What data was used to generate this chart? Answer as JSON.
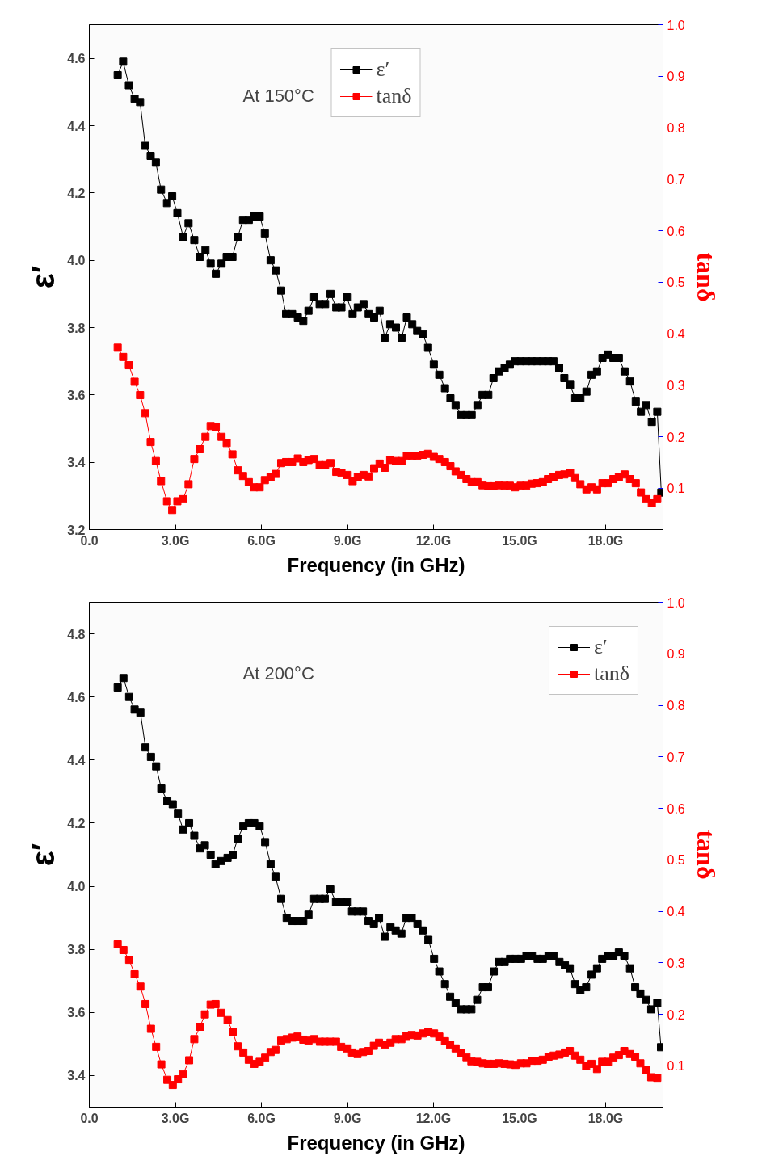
{
  "chart_data": [
    {
      "type": "line",
      "xlabel": "Frequency (in GHz)",
      "ylabel": "ε′",
      "y2label": "tanδ",
      "annotations": [
        "At 150°C"
      ],
      "marker": "square",
      "grid": false,
      "legend": "top",
      "xlim": [
        0,
        20
      ],
      "xticks": [
        {
          "value": 0,
          "label": "0.0"
        },
        {
          "value": 3,
          "label": "3.0G"
        },
        {
          "value": 6,
          "label": "6.0G"
        },
        {
          "value": 9,
          "label": "9.0G"
        },
        {
          "value": 12,
          "label": "12.0G"
        },
        {
          "value": 15,
          "label": "15.0G"
        },
        {
          "value": 18,
          "label": "18.0G"
        }
      ],
      "ylim": [
        3.2,
        4.7
      ],
      "yticks": [
        {
          "value": 3.2,
          "label": "3.2"
        },
        {
          "value": 3.4,
          "label": "3.4"
        },
        {
          "value": 3.6,
          "label": "3.6"
        },
        {
          "value": 3.8,
          "label": "3.8"
        },
        {
          "value": 4.0,
          "label": "4.0"
        },
        {
          "value": 4.2,
          "label": "4.2"
        },
        {
          "value": 4.4,
          "label": "4.4"
        },
        {
          "value": 4.6,
          "label": "4.6"
        }
      ],
      "y2lim": [
        0.02,
        1.0
      ],
      "y2ticks": [
        {
          "value": 0.1,
          "label": "0.1"
        },
        {
          "value": 0.2,
          "label": "0.2"
        },
        {
          "value": 0.3,
          "label": "0.3"
        },
        {
          "value": 0.4,
          "label": "0.4"
        },
        {
          "value": 0.5,
          "label": "0.5"
        },
        {
          "value": 0.6,
          "label": "0.6"
        },
        {
          "value": 0.7,
          "label": "0.7"
        },
        {
          "value": 0.8,
          "label": "0.8"
        },
        {
          "value": 0.9,
          "label": "0.9"
        },
        {
          "value": 1.0,
          "label": "1.0"
        }
      ],
      "x": [
        0.99,
        1.18,
        1.38,
        1.58,
        1.77,
        1.95,
        2.14,
        2.32,
        2.5,
        2.71,
        2.89,
        3.07,
        3.27,
        3.46,
        3.66,
        3.85,
        4.05,
        4.23,
        4.41,
        4.61,
        4.79,
        4.99,
        5.18,
        5.36,
        5.56,
        5.74,
        5.94,
        6.12,
        6.32,
        6.5,
        6.69,
        6.86,
        7.07,
        7.27,
        7.46,
        7.64,
        7.84,
        8.03,
        8.22,
        8.41,
        8.61,
        8.79,
        8.98,
        9.18,
        9.36,
        9.56,
        9.74,
        9.93,
        10.12,
        10.3,
        10.49,
        10.69,
        10.89,
        11.07,
        11.26,
        11.43,
        11.63,
        11.81,
        12.01,
        12.2,
        12.4,
        12.59,
        12.77,
        12.96,
        13.15,
        13.33,
        13.53,
        13.71,
        13.91,
        14.09,
        14.28,
        14.48,
        14.66,
        14.84,
        15.04,
        15.23,
        15.42,
        15.61,
        15.81,
        15.99,
        16.18,
        16.38,
        16.56,
        16.76,
        16.94,
        17.12,
        17.33,
        17.51,
        17.7,
        17.89,
        18.07,
        18.27,
        18.46,
        18.66,
        18.85,
        19.05,
        19.23,
        19.41,
        19.61,
        19.8,
        19.94
      ],
      "series": [
        {
          "name": "ε′",
          "color": "#000000",
          "values": [
            4.55,
            4.59,
            4.52,
            4.48,
            4.47,
            4.34,
            4.31,
            4.29,
            4.21,
            4.17,
            4.19,
            4.14,
            4.07,
            4.11,
            4.06,
            4.01,
            4.03,
            3.99,
            3.96,
            3.99,
            4.01,
            4.01,
            4.07,
            4.12,
            4.12,
            4.13,
            4.13,
            4.08,
            4.0,
            3.97,
            3.91,
            3.84,
            3.84,
            3.83,
            3.82,
            3.85,
            3.89,
            3.87,
            3.87,
            3.9,
            3.86,
            3.86,
            3.89,
            3.84,
            3.86,
            3.87,
            3.84,
            3.83,
            3.85,
            3.77,
            3.81,
            3.8,
            3.77,
            3.83,
            3.81,
            3.79,
            3.78,
            3.74,
            3.69,
            3.66,
            3.62,
            3.59,
            3.57,
            3.54,
            3.54,
            3.54,
            3.57,
            3.6,
            3.6,
            3.65,
            3.67,
            3.68,
            3.69,
            3.7,
            3.7,
            3.7,
            3.7,
            3.7,
            3.7,
            3.7,
            3.7,
            3.68,
            3.65,
            3.63,
            3.59,
            3.59,
            3.61,
            3.66,
            3.67,
            3.71,
            3.72,
            3.71,
            3.71,
            3.67,
            3.64,
            3.58,
            3.55,
            3.57,
            3.52,
            3.55,
            3.31
          ]
        },
        {
          "name": "tanδ",
          "color": "#ff0000",
          "axis": "y2",
          "values": [
            0.373,
            0.355,
            0.339,
            0.307,
            0.281,
            0.246,
            0.19,
            0.153,
            0.114,
            0.075,
            0.058,
            0.075,
            0.079,
            0.108,
            0.157,
            0.176,
            0.2,
            0.221,
            0.219,
            0.2,
            0.188,
            0.166,
            0.135,
            0.124,
            0.112,
            0.102,
            0.102,
            0.116,
            0.122,
            0.128,
            0.149,
            0.151,
            0.151,
            0.158,
            0.151,
            0.155,
            0.157,
            0.145,
            0.145,
            0.149,
            0.132,
            0.13,
            0.126,
            0.114,
            0.122,
            0.126,
            0.123,
            0.139,
            0.148,
            0.14,
            0.155,
            0.153,
            0.153,
            0.163,
            0.163,
            0.163,
            0.165,
            0.167,
            0.161,
            0.157,
            0.151,
            0.143,
            0.133,
            0.126,
            0.118,
            0.112,
            0.112,
            0.106,
            0.104,
            0.104,
            0.106,
            0.105,
            0.105,
            0.102,
            0.105,
            0.105,
            0.109,
            0.11,
            0.112,
            0.118,
            0.122,
            0.126,
            0.127,
            0.13,
            0.12,
            0.108,
            0.098,
            0.102,
            0.098,
            0.11,
            0.11,
            0.118,
            0.122,
            0.127,
            0.118,
            0.11,
            0.092,
            0.079,
            0.071,
            0.079,
            null
          ]
        }
      ]
    },
    {
      "type": "line",
      "xlabel": "Frequency (in GHz)",
      "ylabel": "ε′",
      "y2label": "tanδ",
      "annotations": [
        "At 200°C"
      ],
      "marker": "square",
      "grid": false,
      "legend": "top right",
      "xlim": [
        0,
        20
      ],
      "xticks": [
        {
          "value": 0,
          "label": "0.0"
        },
        {
          "value": 3,
          "label": "3.0G"
        },
        {
          "value": 6,
          "label": "6.0G"
        },
        {
          "value": 9,
          "label": "9.0G"
        },
        {
          "value": 12,
          "label": "12.0G"
        },
        {
          "value": 15,
          "label": "15.0G"
        },
        {
          "value": 18,
          "label": "18.0G"
        }
      ],
      "ylim": [
        3.3,
        4.9
      ],
      "yticks": [
        {
          "value": 3.4,
          "label": "3.4"
        },
        {
          "value": 3.6,
          "label": "3.6"
        },
        {
          "value": 3.8,
          "label": "3.8"
        },
        {
          "value": 4.0,
          "label": "4.0"
        },
        {
          "value": 4.2,
          "label": "4.2"
        },
        {
          "value": 4.4,
          "label": "4.4"
        },
        {
          "value": 4.6,
          "label": "4.6"
        },
        {
          "value": 4.8,
          "label": "4.8"
        }
      ],
      "y2lim": [
        0.02,
        1.0
      ],
      "y2ticks": [
        {
          "value": 0.1,
          "label": "0.1"
        },
        {
          "value": 0.2,
          "label": "0.2"
        },
        {
          "value": 0.3,
          "label": "0.3"
        },
        {
          "value": 0.4,
          "label": "0.4"
        },
        {
          "value": 0.5,
          "label": "0.5"
        },
        {
          "value": 0.6,
          "label": "0.6"
        },
        {
          "value": 0.7,
          "label": "0.7"
        },
        {
          "value": 0.8,
          "label": "0.8"
        },
        {
          "value": 0.9,
          "label": "0.9"
        },
        {
          "value": 1.0,
          "label": "1.0"
        }
      ],
      "x": [
        0.99,
        1.19,
        1.39,
        1.58,
        1.78,
        1.96,
        2.15,
        2.33,
        2.51,
        2.72,
        2.91,
        3.09,
        3.27,
        3.48,
        3.66,
        3.86,
        4.03,
        4.23,
        4.4,
        4.59,
        4.82,
        5.0,
        5.17,
        5.37,
        5.56,
        5.75,
        5.94,
        6.13,
        6.32,
        6.49,
        6.69,
        6.88,
        7.08,
        7.26,
        7.46,
        7.64,
        7.84,
        8.04,
        8.21,
        8.4,
        8.6,
        8.78,
        8.98,
        9.16,
        9.35,
        9.54,
        9.73,
        9.92,
        10.1,
        10.3,
        10.5,
        10.68,
        10.88,
        11.05,
        11.24,
        11.44,
        11.62,
        11.82,
        12.02,
        12.2,
        12.4,
        12.58,
        12.77,
        12.96,
        13.15,
        13.32,
        13.52,
        13.72,
        13.9,
        14.1,
        14.28,
        14.48,
        14.67,
        14.86,
        15.05,
        15.24,
        15.43,
        15.63,
        15.81,
        16.01,
        16.19,
        16.39,
        16.58,
        16.75,
        16.94,
        17.12,
        17.32,
        17.51,
        17.7,
        17.88,
        18.08,
        18.27,
        18.46,
        18.65,
        18.85,
        19.03,
        19.21,
        19.41,
        19.59,
        19.8,
        19.93
      ],
      "series": [
        {
          "name": "ε′",
          "color": "#000000",
          "values": [
            4.63,
            4.66,
            4.6,
            4.56,
            4.55,
            4.44,
            4.41,
            4.38,
            4.31,
            4.27,
            4.26,
            4.23,
            4.18,
            4.2,
            4.16,
            4.12,
            4.13,
            4.1,
            4.07,
            4.08,
            4.09,
            4.1,
            4.15,
            4.19,
            4.2,
            4.2,
            4.19,
            4.14,
            4.07,
            4.03,
            3.96,
            3.9,
            3.89,
            3.89,
            3.89,
            3.91,
            3.96,
            3.96,
            3.96,
            3.99,
            3.95,
            3.95,
            3.95,
            3.92,
            3.92,
            3.92,
            3.89,
            3.88,
            3.9,
            3.84,
            3.87,
            3.86,
            3.85,
            3.9,
            3.9,
            3.88,
            3.86,
            3.83,
            3.77,
            3.73,
            3.69,
            3.65,
            3.63,
            3.61,
            3.61,
            3.61,
            3.64,
            3.68,
            3.68,
            3.73,
            3.76,
            3.76,
            3.77,
            3.77,
            3.77,
            3.78,
            3.78,
            3.77,
            3.77,
            3.78,
            3.78,
            3.76,
            3.75,
            3.74,
            3.69,
            3.67,
            3.68,
            3.72,
            3.74,
            3.77,
            3.78,
            3.78,
            3.79,
            3.78,
            3.74,
            3.68,
            3.66,
            3.64,
            3.61,
            3.63,
            3.49
          ]
        },
        {
          "name": "tanδ",
          "color": "#ff0000",
          "axis": "y2",
          "values": [
            0.336,
            0.325,
            0.306,
            0.278,
            0.254,
            0.22,
            0.172,
            0.137,
            0.103,
            0.073,
            0.063,
            0.074,
            0.084,
            0.111,
            0.152,
            0.176,
            0.2,
            0.219,
            0.22,
            0.203,
            0.189,
            0.166,
            0.138,
            0.126,
            0.112,
            0.104,
            0.108,
            0.116,
            0.127,
            0.131,
            0.149,
            0.152,
            0.155,
            0.157,
            0.151,
            0.149,
            0.152,
            0.147,
            0.147,
            0.147,
            0.147,
            0.137,
            0.134,
            0.126,
            0.123,
            0.127,
            0.129,
            0.139,
            0.145,
            0.141,
            0.145,
            0.152,
            0.152,
            0.158,
            0.16,
            0.159,
            0.163,
            0.166,
            0.163,
            0.157,
            0.148,
            0.141,
            0.134,
            0.125,
            0.117,
            0.109,
            0.108,
            0.105,
            0.104,
            0.104,
            0.105,
            0.104,
            0.103,
            0.102,
            0.105,
            0.105,
            0.11,
            0.11,
            0.112,
            0.118,
            0.12,
            0.122,
            0.126,
            0.129,
            0.12,
            0.112,
            0.1,
            0.104,
            0.094,
            0.108,
            0.108,
            0.116,
            0.121,
            0.129,
            0.123,
            0.118,
            0.105,
            0.092,
            0.078,
            0.077,
            null
          ]
        }
      ]
    }
  ]
}
